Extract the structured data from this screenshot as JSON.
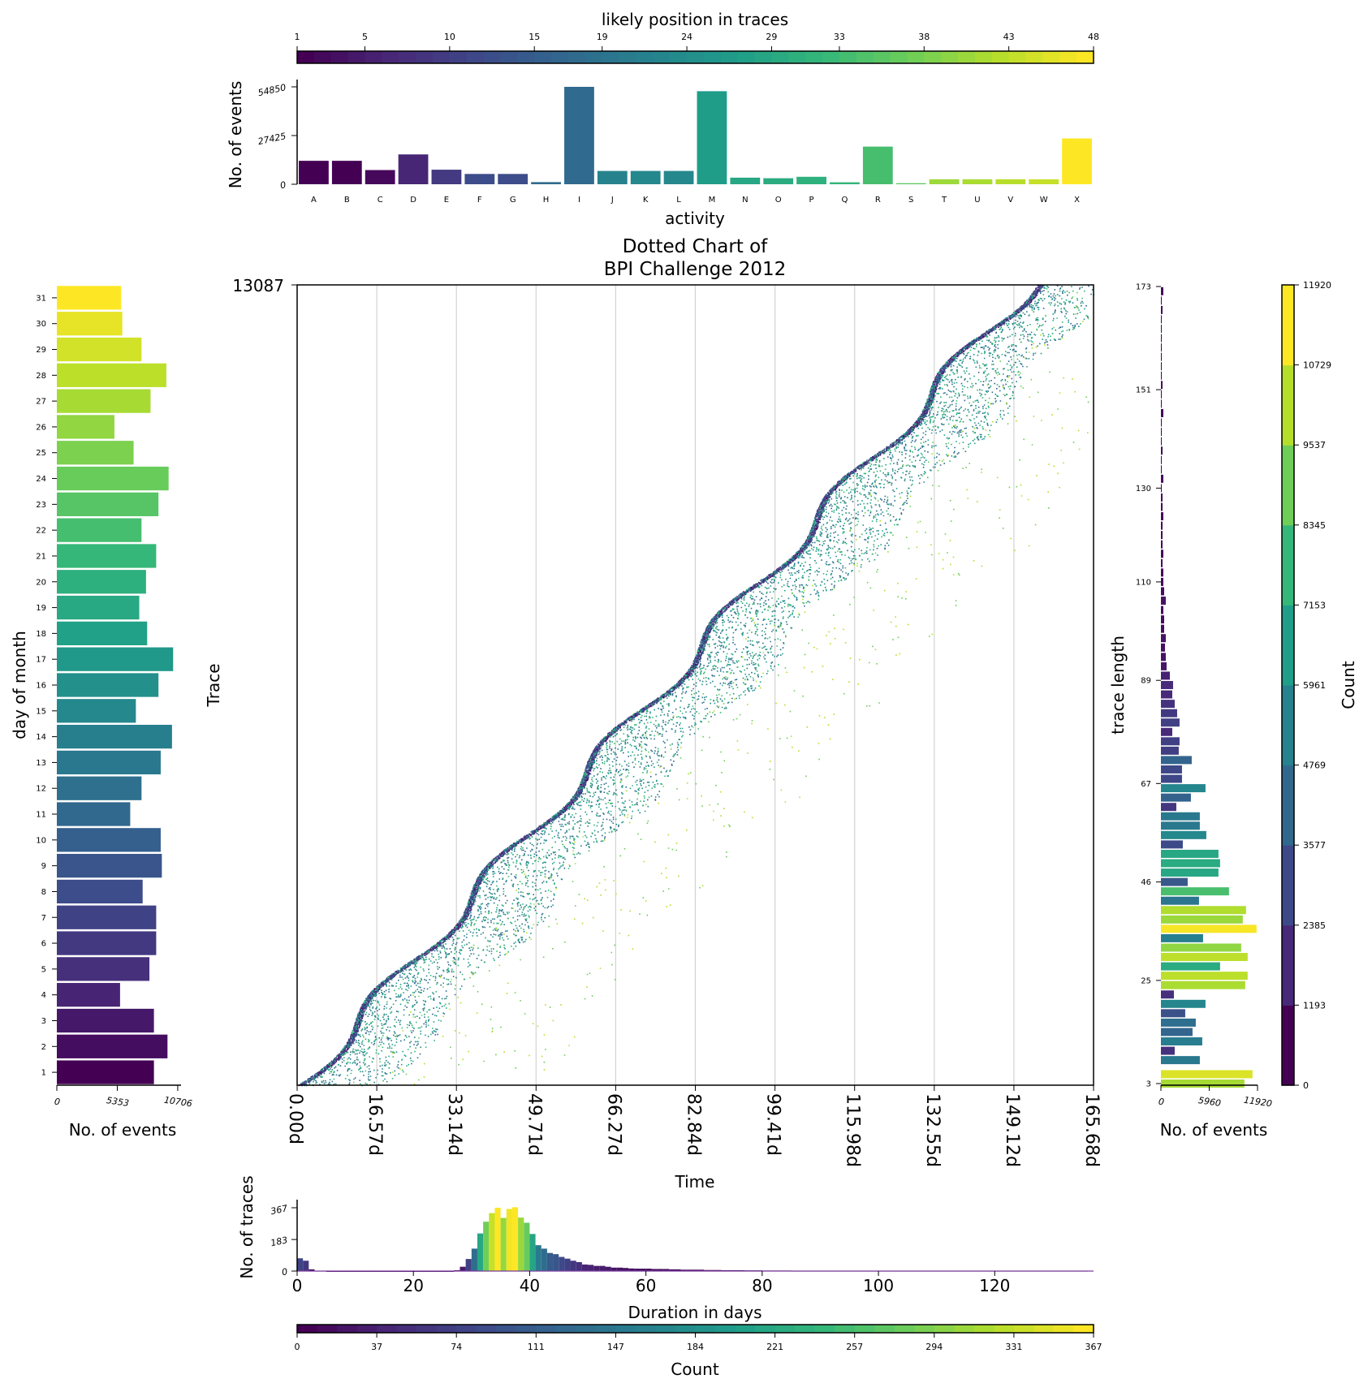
{
  "colors": {
    "viridis": [
      "#440154",
      "#482878",
      "#3e4989",
      "#31688e",
      "#26828e",
      "#1f9e89",
      "#35b779",
      "#6ece58",
      "#b5de2b",
      "#fde725"
    ],
    "grid": "#d3d3d3",
    "frame": "#000000"
  },
  "chart_data": [
    {
      "id": "activity_histogram",
      "type": "bar",
      "categories": [
        "A",
        "B",
        "C",
        "D",
        "E",
        "F",
        "G",
        "H",
        "I",
        "J",
        "K",
        "L",
        "M",
        "N",
        "O",
        "P",
        "Q",
        "R",
        "S",
        "T",
        "U",
        "V",
        "W",
        "X"
      ],
      "values": [
        13200,
        13200,
        8000,
        16800,
        8200,
        5800,
        5800,
        1200,
        54850,
        7500,
        7500,
        7500,
        52400,
        3700,
        3400,
        4200,
        1100,
        21200,
        600,
        2800,
        2800,
        2800,
        2800,
        25800
      ],
      "position_colors": [
        1,
        1,
        2,
        6,
        9,
        12,
        12,
        17,
        17,
        22,
        23,
        23,
        27,
        29,
        30,
        31,
        32,
        34,
        36,
        41,
        42,
        43,
        44,
        48
      ],
      "xlabel": "activity",
      "ylabel": "No. of events",
      "yticks": [
        "0",
        "27425",
        "54850"
      ],
      "ylim": [
        0,
        58000
      ]
    },
    {
      "id": "position_colorbar",
      "type": "colorbar",
      "label": "likely position in traces",
      "range": [
        1,
        48
      ],
      "ticks": [
        "1",
        "5",
        "10",
        "15",
        "19",
        "24",
        "29",
        "33",
        "38",
        "43",
        "48"
      ]
    },
    {
      "id": "dotted_chart",
      "type": "scatter",
      "title": [
        "Dotted Chart of",
        "BPI Challenge 2012"
      ],
      "xlabel": "Time",
      "ylabel": "Trace",
      "xticks": [
        "0.00d",
        "16.57d",
        "33.14d",
        "49.71d",
        "66.27d",
        "82.84d",
        "99.41d",
        "115.98d",
        "132.55d",
        "149.12d",
        "165.68d"
      ],
      "xlim": [
        0,
        165.68
      ],
      "ytick_top": "13087",
      "ylim": [
        0,
        13087
      ],
      "grid": "vertical"
    },
    {
      "id": "day_of_month",
      "type": "bar",
      "orientation": "horizontal",
      "categories": [
        "1",
        "2",
        "3",
        "4",
        "5",
        "6",
        "7",
        "8",
        "9",
        "10",
        "11",
        "12",
        "13",
        "14",
        "15",
        "16",
        "17",
        "18",
        "19",
        "20",
        "21",
        "22",
        "23",
        "24",
        "25",
        "26",
        "27",
        "28",
        "29",
        "30",
        "31"
      ],
      "values": [
        8600,
        9800,
        8600,
        5600,
        8200,
        8800,
        8800,
        7600,
        9300,
        9200,
        6500,
        7500,
        9200,
        10200,
        7000,
        9000,
        10300,
        8000,
        7300,
        7900,
        8800,
        7500,
        9000,
        9900,
        6800,
        5100,
        8300,
        9700,
        7500,
        5800,
        5700
      ],
      "xlabel": "No. of events",
      "ylabel": "day of month",
      "xticks": [
        "0",
        "5353",
        "10706"
      ],
      "xlim": [
        0,
        11000
      ]
    },
    {
      "id": "trace_length",
      "type": "bar",
      "orientation": "horizontal",
      "ylabel": "trace length",
      "xlabel": "No. of events",
      "yticks": [
        "3",
        "25",
        "46",
        "67",
        "89",
        "110",
        "130",
        "151",
        "173"
      ],
      "xticks": [
        "0",
        "5960",
        "11920"
      ],
      "xlim": [
        0,
        11920
      ],
      "ylim": [
        3,
        173
      ],
      "y": [
        3,
        5,
        8,
        10,
        12,
        14,
        16,
        18,
        20,
        22,
        24,
        26,
        28,
        30,
        32,
        34,
        36,
        38,
        40,
        42,
        44,
        46,
        48,
        50,
        52,
        54,
        56,
        58,
        60,
        62,
        64,
        66,
        68,
        70,
        72,
        74,
        76,
        78,
        80,
        82,
        84,
        86,
        88,
        90,
        92,
        94,
        96,
        98,
        100,
        102,
        104,
        106,
        108,
        110,
        112,
        114,
        116,
        118,
        120,
        122,
        124,
        126,
        128,
        130,
        132,
        134,
        136,
        138,
        140,
        142,
        144,
        146,
        148,
        150,
        152,
        154,
        156,
        158,
        160,
        162,
        164,
        166,
        168,
        170,
        172
      ],
      "values": [
        10300,
        11300,
        4800,
        1700,
        5100,
        3900,
        4300,
        3000,
        5500,
        1600,
        10400,
        10700,
        7300,
        10700,
        9900,
        5200,
        11800,
        10100,
        10500,
        4700,
        8400,
        3300,
        7100,
        7300,
        7100,
        2700,
        5600,
        4800,
        4800,
        1900,
        3700,
        5500,
        2600,
        2600,
        3800,
        2200,
        2300,
        1400,
        2300,
        2000,
        1700,
        1400,
        1500,
        1100,
        700,
        600,
        500,
        600,
        400,
        400,
        300,
        600,
        400,
        300,
        300,
        200,
        300,
        200,
        200,
        200,
        300,
        200,
        200,
        100,
        300,
        100,
        100,
        200,
        100,
        100,
        100,
        300,
        100,
        100,
        200,
        100,
        100,
        100,
        100,
        100,
        100,
        100,
        200,
        100,
        300
      ],
      "colorbar_label": "Count",
      "colorbar_ticks": [
        "0",
        "1193",
        "2385",
        "3577",
        "4769",
        "5961",
        "7153",
        "8345",
        "9537",
        "10729",
        "11920"
      ]
    },
    {
      "id": "duration_histogram",
      "type": "bar",
      "xlabel": "Duration in days",
      "ylabel": "No. of traces",
      "xticks": [
        "0",
        "20",
        "40",
        "60",
        "80",
        "100",
        "120"
      ],
      "yticks": [
        "0",
        "183",
        "367"
      ],
      "xlim": [
        0,
        137
      ],
      "ylim": [
        0,
        367
      ],
      "values": [
        74,
        60,
        10,
        2,
        2,
        0,
        0,
        0,
        0,
        0,
        0,
        0,
        0,
        0,
        0,
        0,
        0,
        0,
        0,
        0,
        0,
        0,
        0,
        0,
        0,
        0,
        0,
        5,
        25,
        70,
        130,
        218,
        286,
        336,
        367,
        308,
        360,
        370,
        310,
        280,
        215,
        150,
        130,
        105,
        98,
        82,
        72,
        60,
        52,
        38,
        36,
        30,
        30,
        25,
        20,
        20,
        18,
        15,
        14,
        14,
        14,
        12,
        12,
        12,
        10,
        10,
        8,
        8,
        8,
        8,
        6,
        6,
        6,
        5,
        5,
        5,
        5,
        4,
        4,
        4,
        3,
        3,
        3,
        3,
        3,
        2,
        2,
        2,
        2,
        2,
        2,
        2,
        2,
        2,
        2,
        2,
        2,
        2,
        2,
        2,
        2,
        2,
        2,
        2,
        2,
        2,
        2,
        2,
        2,
        2,
        2,
        2,
        2,
        2,
        2,
        2,
        2,
        2,
        2,
        2,
        2,
        2,
        2,
        2,
        2,
        2,
        2,
        2,
        2,
        2,
        2,
        2,
        2,
        2,
        2,
        2
      ],
      "colorbar_label": "Count",
      "colorbar_ticks": [
        "0",
        "37",
        "74",
        "111",
        "147",
        "184",
        "221",
        "257",
        "294",
        "331",
        "367"
      ]
    }
  ]
}
